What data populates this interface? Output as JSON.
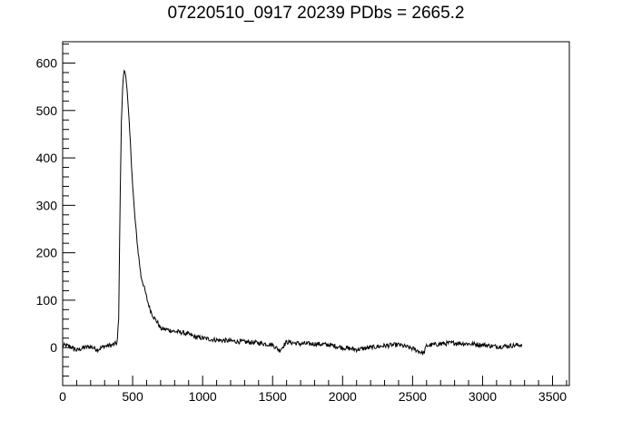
{
  "chart_data": {
    "type": "line",
    "title": "07220510_0917 20239 PDbs = 2665.2",
    "xlabel": "",
    "ylabel": "",
    "xlim": [
      0,
      3620
    ],
    "ylim": [
      -80,
      645
    ],
    "x_ticks": [
      0,
      500,
      1000,
      1500,
      2000,
      2500,
      3000,
      3500
    ],
    "y_ticks": [
      0,
      100,
      200,
      300,
      400,
      500,
      600
    ],
    "x_minor_step": 100,
    "y_minor_step": 20,
    "grid": false,
    "line_color": "#000000",
    "series": [
      {
        "x": [
          0,
          50,
          100,
          150,
          200,
          250,
          300,
          350,
          390,
          400,
          410,
          420,
          430,
          440,
          450,
          460,
          470,
          480,
          490,
          500,
          520,
          540,
          560,
          580,
          600,
          620,
          640,
          660,
          680,
          700,
          750,
          800,
          850,
          900,
          950,
          1000,
          1100,
          1200,
          1300,
          1400,
          1500,
          1550,
          1600,
          1700,
          1800,
          1900,
          2000,
          2100,
          2200,
          2300,
          2400,
          2500,
          2580,
          2600,
          2700,
          2800,
          2900,
          3000,
          3100,
          3200,
          3280
        ],
        "y": [
          5,
          3,
          -6,
          0,
          2,
          -4,
          3,
          5,
          10,
          60,
          300,
          480,
          560,
          585,
          575,
          545,
          500,
          450,
          400,
          340,
          260,
          200,
          150,
          130,
          105,
          85,
          70,
          60,
          52,
          40,
          38,
          34,
          32,
          28,
          22,
          20,
          16,
          14,
          12,
          10,
          6,
          -6,
          12,
          8,
          8,
          6,
          0,
          -4,
          0,
          4,
          6,
          -2,
          -12,
          4,
          8,
          10,
          8,
          6,
          2,
          4,
          6
        ]
      }
    ]
  }
}
